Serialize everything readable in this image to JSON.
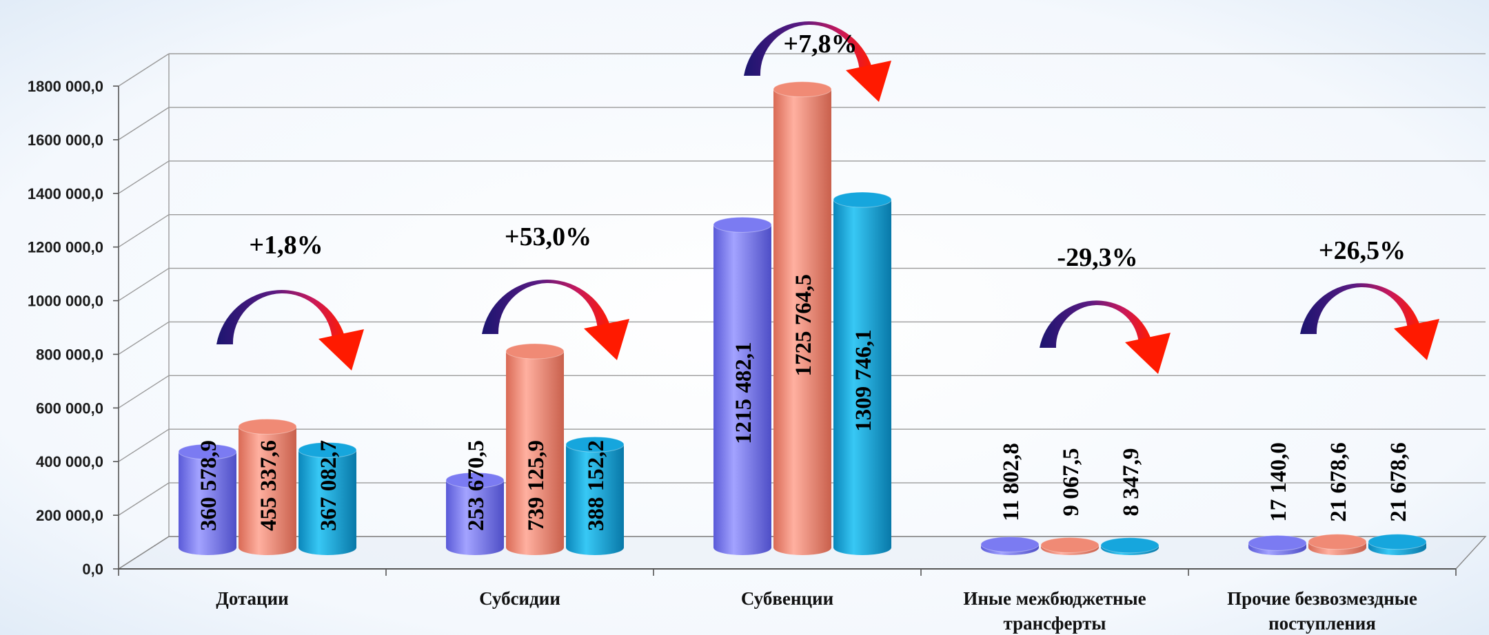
{
  "chart_data": {
    "type": "bar",
    "title": "",
    "xlabel": "",
    "ylabel": "",
    "ylim": [
      0,
      1800000
    ],
    "yticks": [
      "0,0",
      "200 000,0",
      "400 000,0",
      "600 000,0",
      "800 000,0",
      "1000 000,0",
      "1200 000,0",
      "1400 000,0",
      "1600 000,0",
      "1800 000,0"
    ],
    "grid": true,
    "legend": "none",
    "categories": [
      [
        "Дотации"
      ],
      [
        "Субсидии"
      ],
      [
        "Субвенции"
      ],
      [
        "Иные межбюджетные",
        "трансферты"
      ],
      [
        "Прочие безвозмездные",
        "поступления"
      ]
    ],
    "series": [
      {
        "color": "#7b7bf2",
        "values": [
          360578.9,
          253670.5,
          1215482.1,
          11802.8,
          17140.0
        ],
        "labels": [
          "360 578,9",
          "253 670,5",
          "1215 482,1",
          "11 802,8",
          "17 140,0"
        ]
      },
      {
        "color": "#f08a75",
        "values": [
          455337.6,
          739125.9,
          1725764.5,
          9067.5,
          21678.6
        ],
        "labels": [
          "455 337,6",
          "739 125,9",
          "1725 764,5",
          "9 067,5",
          "21 678,6"
        ]
      },
      {
        "color": "#16a6dd",
        "values": [
          367082.7,
          388152.2,
          1309746.1,
          8347.9,
          21678.6
        ],
        "labels": [
          "367 082,7",
          "388 152,2",
          "1309 746,1",
          "8 347,9",
          "21 678,6"
        ]
      }
    ],
    "changes": [
      "+1,8%",
      "+53,0%",
      "+7,8%",
      "-29,3%",
      "+26,5%"
    ]
  }
}
